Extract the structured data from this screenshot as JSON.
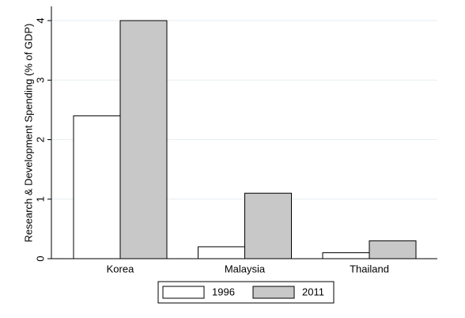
{
  "chart_data": {
    "type": "bar",
    "ylabel": "Research & Development Spending (% of GDP)",
    "categories": [
      "Korea",
      "Malaysia",
      "Thailand"
    ],
    "series": [
      {
        "name": "1996",
        "color": "#ffffff",
        "values": [
          2.4,
          0.2,
          0.1
        ]
      },
      {
        "name": "2011",
        "color": "#c8c8c8",
        "values": [
          4.0,
          1.1,
          0.3
        ]
      }
    ],
    "ylim": [
      0,
      4.24
    ],
    "yticks": [
      0,
      1,
      2,
      3,
      4
    ],
    "grid": true,
    "legend": "bottom"
  }
}
